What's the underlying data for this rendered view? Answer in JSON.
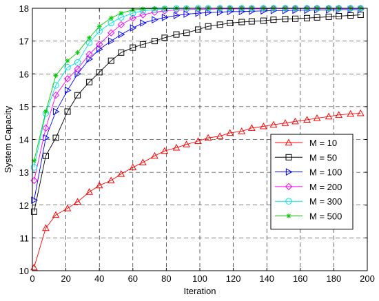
{
  "chart_data": {
    "type": "line",
    "title": "",
    "xlabel": "Iteration",
    "ylabel": "System Capacity",
    "xlim": [
      0,
      200
    ],
    "ylim": [
      10,
      18
    ],
    "xticks": [
      0,
      20,
      40,
      60,
      80,
      100,
      120,
      140,
      160,
      180,
      200
    ],
    "yticks": [
      10,
      11,
      12,
      13,
      14,
      15,
      16,
      17,
      18
    ],
    "grid": true,
    "grid_style": "dashed",
    "legend_position": "center-right",
    "x": [
      1,
      8,
      14,
      21,
      27,
      34,
      40,
      47,
      53,
      60,
      66,
      73,
      79,
      86,
      92,
      99,
      105,
      112,
      118,
      125,
      131,
      138,
      144,
      151,
      157,
      164,
      170,
      177,
      183,
      190,
      196
    ],
    "series": [
      {
        "name": "M = 10",
        "color": "#ff0000",
        "marker": "triangle-up",
        "values": [
          10.1,
          11.3,
          11.7,
          11.9,
          12.1,
          12.4,
          12.6,
          12.75,
          12.95,
          13.15,
          13.3,
          13.5,
          13.65,
          13.75,
          13.85,
          13.95,
          14.05,
          14.1,
          14.2,
          14.25,
          14.35,
          14.4,
          14.45,
          14.5,
          14.55,
          14.6,
          14.65,
          14.7,
          14.75,
          14.78,
          14.8
        ]
      },
      {
        "name": "M = 50",
        "color": "#000000",
        "marker": "square",
        "values": [
          11.8,
          13.5,
          14.05,
          14.85,
          15.35,
          15.75,
          16.05,
          16.4,
          16.65,
          16.8,
          16.9,
          17.0,
          17.1,
          17.2,
          17.25,
          17.35,
          17.45,
          17.5,
          17.55,
          17.58,
          17.6,
          17.62,
          17.65,
          17.67,
          17.68,
          17.7,
          17.72,
          17.74,
          17.76,
          17.78,
          17.8
        ]
      },
      {
        "name": "M = 100",
        "color": "#0000ff",
        "marker": "triangle-right",
        "values": [
          12.15,
          14.05,
          14.85,
          15.5,
          16.0,
          16.45,
          16.75,
          17.0,
          17.2,
          17.4,
          17.55,
          17.65,
          17.72,
          17.78,
          17.82,
          17.85,
          17.87,
          17.88,
          17.9,
          17.9,
          17.91,
          17.92,
          17.93,
          17.93,
          17.94,
          17.94,
          17.95,
          17.95,
          17.96,
          17.96,
          17.96
        ]
      },
      {
        "name": "M = 200",
        "color": "#ff00ff",
        "marker": "diamond",
        "values": [
          12.75,
          14.35,
          15.35,
          15.85,
          16.15,
          16.6,
          16.9,
          17.25,
          17.5,
          17.7,
          17.8,
          17.88,
          17.92,
          17.95,
          17.96,
          17.97,
          17.97,
          17.98,
          17.98,
          17.98,
          17.98,
          17.98,
          17.99,
          17.99,
          17.99,
          17.99,
          17.99,
          17.99,
          17.99,
          17.99,
          17.99
        ]
      },
      {
        "name": "M = 300",
        "color": "#00e5e5",
        "marker": "circle",
        "values": [
          13.15,
          14.8,
          15.65,
          16.2,
          16.35,
          16.95,
          17.3,
          17.55,
          17.72,
          17.85,
          17.92,
          17.96,
          17.98,
          17.99,
          17.99,
          18.0,
          18.0,
          18.0,
          18.0,
          18.0,
          18.0,
          18.0,
          18.0,
          18.0,
          18.0,
          18.0,
          18.0,
          18.0,
          18.0,
          18.0,
          18.0
        ]
      },
      {
        "name": "M = 500",
        "color": "#00cc00",
        "marker": "star",
        "values": [
          13.35,
          14.85,
          15.95,
          16.4,
          16.65,
          17.1,
          17.45,
          17.7,
          17.85,
          17.95,
          17.98,
          17.99,
          18.0,
          18.0,
          18.0,
          18.0,
          18.0,
          18.0,
          18.0,
          18.0,
          18.0,
          18.0,
          18.0,
          18.0,
          18.0,
          18.0,
          18.0,
          18.0,
          18.0,
          18.0,
          18.0
        ]
      }
    ]
  }
}
